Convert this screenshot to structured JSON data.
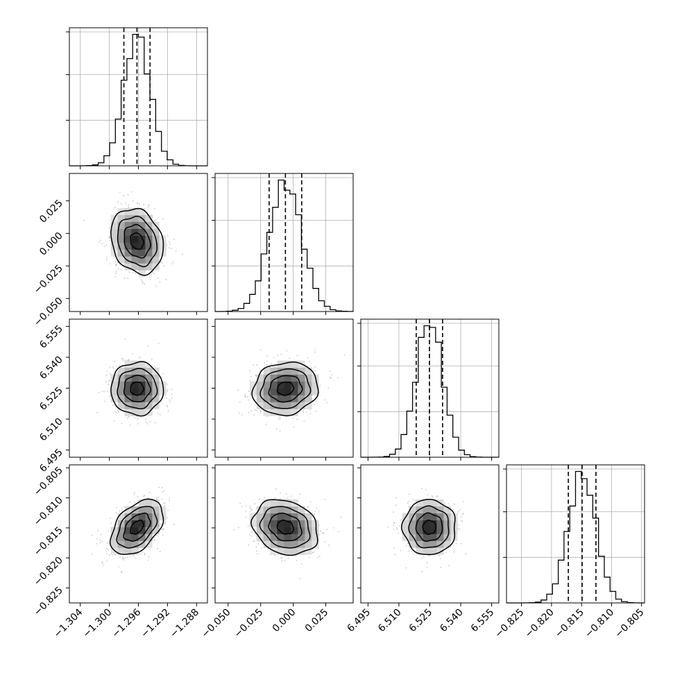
{
  "colors": {
    "line": "#000000",
    "grid": "#b0b0b0",
    "scatter": "#9a9a9a",
    "background": "#ffffff"
  },
  "chart_data": {
    "type": "corner",
    "title": "",
    "parameters": [
      {
        "range": [
          -1.3055,
          -1.2865
        ],
        "ticks": [
          -1.304,
          -1.3,
          -1.296,
          -1.292,
          -1.288
        ],
        "tick_labels": [
          "−1.304",
          "−1.300",
          "−1.296",
          "−1.292",
          "−1.288"
        ],
        "mean": -1.2962,
        "std": 0.0018,
        "quantiles": [
          -1.298,
          -1.2962,
          -1.2944
        ]
      },
      {
        "range": [
          -0.06,
          0.046
        ],
        "ticks": [
          -0.05,
          -0.025,
          0.0,
          0.025
        ],
        "tick_labels": [
          "−0.050",
          "−0.025",
          "0.000",
          "0.025"
        ],
        "mean": -0.006,
        "std": 0.0125,
        "quantiles": [
          -0.0185,
          -0.006,
          0.0065
        ]
      },
      {
        "range": [
          6.4915,
          6.5585
        ],
        "ticks": [
          6.495,
          6.51,
          6.525,
          6.54,
          6.555
        ],
        "tick_labels": [
          "6.495",
          "6.510",
          "6.525",
          "6.540",
          "6.555"
        ],
        "mean": 6.5248,
        "std": 0.0064,
        "quantiles": [
          6.5184,
          6.5248,
          6.5312
        ]
      },
      {
        "range": [
          -0.8275,
          -0.8045
        ],
        "ticks": [
          -0.825,
          -0.82,
          -0.815,
          -0.81,
          -0.805
        ],
        "tick_labels": [
          "−0.825",
          "−0.820",
          "−0.815",
          "−0.810",
          "−0.805"
        ],
        "mean": -0.8149,
        "std": 0.0023,
        "quantiles": [
          -0.8172,
          -0.8149,
          -0.8126
        ]
      }
    ],
    "correlations": [
      [
        1.0,
        -0.2,
        0.0,
        0.45
      ],
      [
        -0.2,
        1.0,
        0.1,
        -0.2
      ],
      [
        0.0,
        0.1,
        1.0,
        0.0
      ],
      [
        0.45,
        -0.2,
        0.0,
        1.0
      ]
    ],
    "contour_levels_sigma": [
      0.5,
      1.0,
      1.5,
      2.0
    ],
    "quantile_lines": "dashed",
    "grid": true,
    "xlabel": "",
    "ylabel": ""
  }
}
